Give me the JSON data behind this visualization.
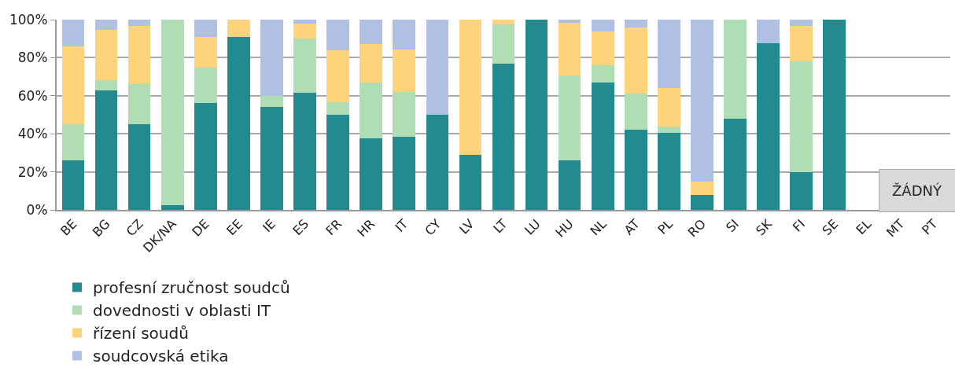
{
  "chart_data": {
    "type": "bar",
    "stacked": true,
    "categories": [
      "BE",
      "BG",
      "CZ",
      "DK/NA",
      "DE",
      "EE",
      "IE",
      "ES",
      "FR",
      "HR",
      "IT",
      "CY",
      "LV",
      "LT",
      "LU",
      "HU",
      "NL",
      "AT",
      "PL",
      "RO",
      "SI",
      "SK",
      "FI",
      "SE",
      "EL",
      "MT",
      "PT"
    ],
    "series": [
      {
        "name": "profesní zručnost soudců",
        "color": "#238a8f",
        "values": [
          26,
          63,
          45,
          2.5,
          56,
          91,
          54,
          61.5,
          50,
          37.5,
          38.5,
          50,
          29,
          77,
          100,
          26,
          67,
          42,
          40.5,
          8,
          48,
          87.5,
          20,
          100,
          null,
          null,
          null
        ]
      },
      {
        "name": "dovednosti v oblasti IT",
        "color": "#b0ddb4",
        "values": [
          19,
          5,
          21,
          97.5,
          19,
          null,
          6,
          28.5,
          6.5,
          29.5,
          23.5,
          null,
          null,
          20.5,
          null,
          44.5,
          9,
          19,
          3.5,
          null,
          52,
          null,
          58,
          null,
          null,
          null,
          null
        ]
      },
      {
        "name": "řízení soudů",
        "color": "#fdd47c",
        "values": [
          41,
          26.5,
          30.5,
          null,
          16,
          9,
          null,
          8,
          27.5,
          20,
          22.5,
          null,
          71,
          2.5,
          null,
          28,
          18,
          35,
          20,
          7,
          null,
          null,
          18.5,
          null,
          null,
          null,
          null
        ]
      },
      {
        "name": "soudcovská etika",
        "color": "#b0c0e4",
        "values": [
          14,
          5.5,
          3.5,
          null,
          9,
          null,
          40,
          2,
          16,
          13,
          15.5,
          50,
          null,
          null,
          null,
          1.5,
          6,
          4,
          36,
          85,
          null,
          12.5,
          3.5,
          null,
          null,
          null,
          null
        ]
      }
    ],
    "ylim": [
      0,
      100
    ],
    "yticks": [
      {
        "value": 0,
        "label": "0%"
      },
      {
        "value": 20,
        "label": "20%"
      },
      {
        "value": 40,
        "label": "40%"
      },
      {
        "value": 60,
        "label": "60%"
      },
      {
        "value": 80,
        "label": "80%"
      },
      {
        "value": 100,
        "label": "100%"
      }
    ],
    "grid": "y",
    "legend": "bottom",
    "annotations": [
      "ŽÁDNÝ"
    ]
  }
}
